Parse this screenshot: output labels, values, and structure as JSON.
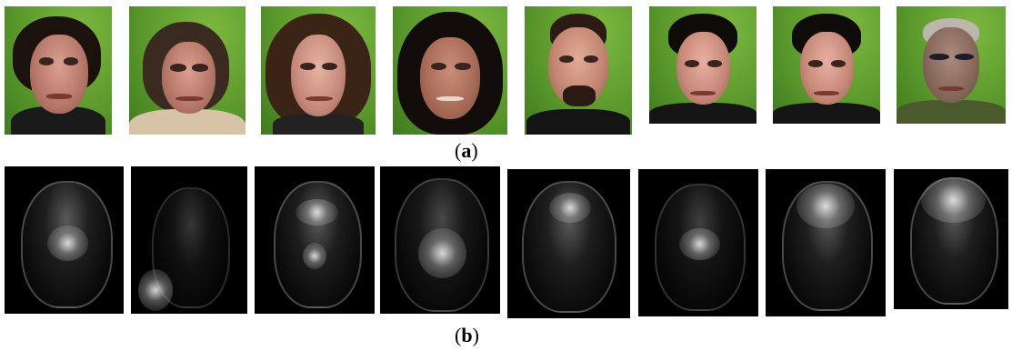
{
  "figure": {
    "row_a": {
      "caption_open": "(",
      "caption_letter": "a",
      "caption_close": ")",
      "images": [
        "face-1",
        "face-2",
        "face-3",
        "face-4",
        "face-5",
        "face-6",
        "face-7",
        "face-8"
      ]
    },
    "row_b": {
      "caption_open": "(",
      "caption_letter": "b",
      "caption_close": ")",
      "images": [
        "map-1",
        "map-2",
        "map-3",
        "map-4",
        "map-5",
        "map-6",
        "map-7",
        "map-8"
      ]
    }
  }
}
